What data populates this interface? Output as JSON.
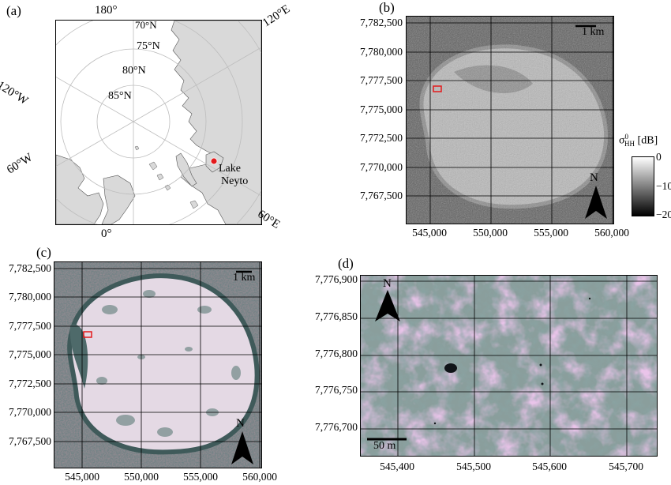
{
  "panels": {
    "a": {
      "label": "(a)",
      "meridians": {
        "top": "180°",
        "right_top": "120°E",
        "left_top": "120°W",
        "left_bottom": "60°W",
        "bottom": "0°",
        "right_bottom": "60°E"
      },
      "latitudes": {
        "lat_70": "70°N",
        "lat_75": "75°N",
        "lat_80": "80°N",
        "lat_85": "85°N"
      },
      "site": {
        "name_line1": "Lake",
        "name_line2": "Neyto",
        "marker_color": "#e31a1c"
      },
      "colors": {
        "land": "#d9d9d9",
        "ocean": "#ffffff"
      }
    },
    "b": {
      "label": "(b)",
      "scale_bar": "1 km",
      "north": "N",
      "y_ticks": [
        "7,782,500",
        "7,780,000",
        "7,777,500",
        "7,775,000",
        "7,772,500",
        "7,770,000",
        "7,767,500"
      ],
      "x_ticks": [
        "545,000",
        "550,000",
        "555,000",
        "560,000"
      ],
      "colorbar": {
        "title_sym": "σ",
        "title_sup": "0",
        "title_sub": "HH",
        "title_unit": "[dB]",
        "ticks": [
          "0",
          "−10",
          "−20"
        ],
        "range": [
          -20,
          0
        ]
      }
    },
    "c": {
      "label": "(c)",
      "scale_bar": "1 km",
      "north": "N",
      "y_ticks": [
        "7,782,500",
        "7,780,000",
        "7,777,500",
        "7,775,000",
        "7,772,500",
        "7,770,000",
        "7,767,500"
      ],
      "x_ticks": [
        "545,000",
        "550,000",
        "555,000",
        "560,000"
      ]
    },
    "d": {
      "label": "(d)",
      "scale_bar": "50 m",
      "north": "N",
      "y_ticks": [
        "7,776,900",
        "7,776,850",
        "7,776,800",
        "7,776,750",
        "7,776,700"
      ],
      "x_ticks": [
        "545,400",
        "545,500",
        "545,600",
        "545,700"
      ]
    }
  }
}
